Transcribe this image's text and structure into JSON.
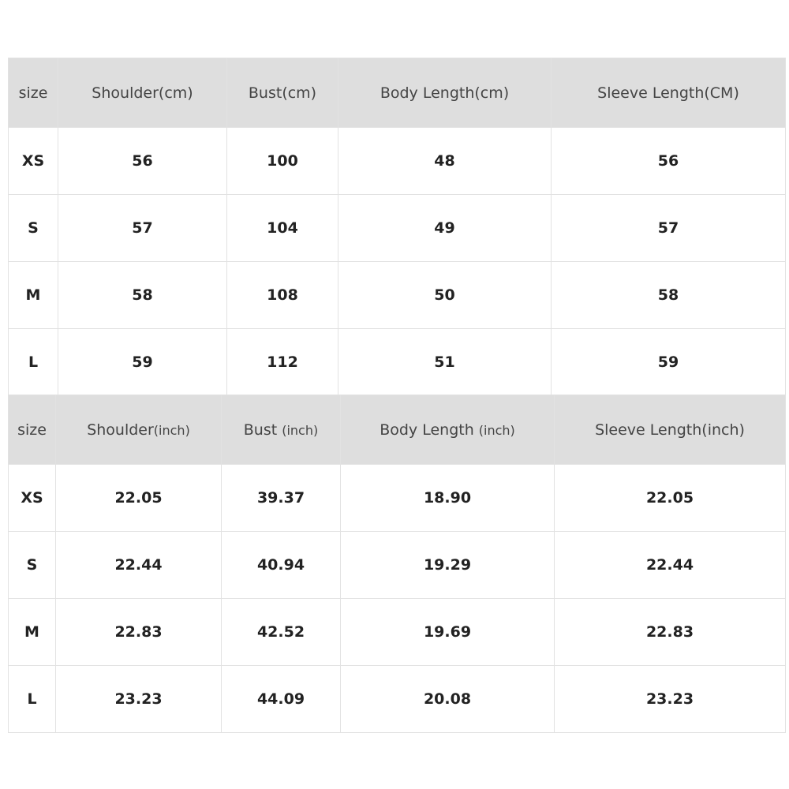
{
  "cm_table": {
    "headers": [
      {
        "main": "size",
        "unit": ""
      },
      {
        "main": "Shoulder(cm)",
        "unit": ""
      },
      {
        "main": "Bust(cm)",
        "unit": ""
      },
      {
        "main": "Body Length(cm)",
        "unit": ""
      },
      {
        "main": "Sleeve Length(CM)",
        "unit": ""
      }
    ],
    "rows": [
      [
        "XS",
        "56",
        "100",
        "48",
        "56"
      ],
      [
        "S",
        "57",
        "104",
        "49",
        "57"
      ],
      [
        "M",
        "58",
        "108",
        "50",
        "58"
      ],
      [
        "L",
        "59",
        "112",
        "51",
        "59"
      ]
    ]
  },
  "inch_table": {
    "headers": [
      {
        "main": "size",
        "unit": ""
      },
      {
        "main": "Shoulder",
        "unit": "(inch)"
      },
      {
        "main": "Bust ",
        "unit": "(inch)"
      },
      {
        "main": "Body Length ",
        "unit": "(inch)"
      },
      {
        "main": "Sleeve Length(inch)",
        "unit": ""
      }
    ],
    "rows": [
      [
        "XS",
        "22.05",
        "39.37",
        "18.90",
        "22.05"
      ],
      [
        "S",
        "22.44",
        "40.94",
        "19.29",
        "22.44"
      ],
      [
        "M",
        "22.83",
        "42.52",
        "19.69",
        "22.83"
      ],
      [
        "L",
        "23.23",
        "44.09",
        "20.08",
        "23.23"
      ]
    ]
  },
  "colors": {
    "header_bg": "#dedede",
    "border": "#e2e2e2"
  }
}
